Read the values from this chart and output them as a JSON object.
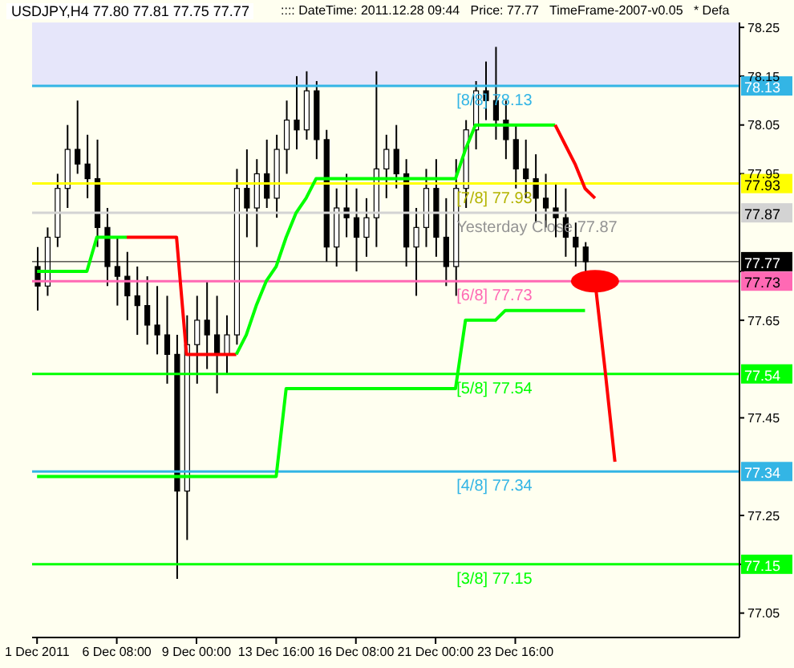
{
  "chart_data": {
    "type": "candlestick",
    "title": "USDJPY,H4  77.80 77.81 77.75 77.77",
    "subtitle": ":::: DateTime: 2011.12.28 09:44   Price: 77.77   TimeFrame-2007-v0.05   * Defa",
    "categories": [
      "1 Dec 2011",
      null,
      null,
      null,
      null,
      null,
      null,
      null,
      "6 Dec 08:00",
      null,
      null,
      null,
      null,
      null,
      null,
      null,
      "9 Dec 00:00",
      null,
      null,
      null,
      null,
      null,
      null,
      null,
      "13 Dec 16:00",
      null,
      null,
      null,
      null,
      null,
      null,
      null,
      "16 Dec 08:00",
      null,
      null,
      null,
      null,
      null,
      null,
      null,
      "21 Dec 00:00",
      null,
      null,
      null,
      null,
      null,
      null,
      null,
      "23 Dec 16:00",
      null,
      null,
      null,
      null,
      null,
      null,
      null,
      null,
      null,
      null,
      null,
      null,
      null,
      null,
      null,
      null,
      null,
      null,
      null,
      null,
      null,
      null
    ],
    "ohlc": [
      [
        77.76,
        77.8,
        77.67,
        77.72
      ],
      [
        77.72,
        77.84,
        77.7,
        77.82
      ],
      [
        77.82,
        77.95,
        77.8,
        77.92
      ],
      [
        77.92,
        78.05,
        77.88,
        78.0
      ],
      [
        78.0,
        78.1,
        77.95,
        77.97
      ],
      [
        77.97,
        78.03,
        77.9,
        77.94
      ],
      [
        77.94,
        78.02,
        77.8,
        77.84
      ],
      [
        77.84,
        77.88,
        77.72,
        77.76
      ],
      [
        77.76,
        77.82,
        77.68,
        77.74
      ],
      [
        77.74,
        77.79,
        77.65,
        77.7
      ],
      [
        77.7,
        77.76,
        77.62,
        77.68
      ],
      [
        77.68,
        77.74,
        77.6,
        77.64
      ],
      [
        77.64,
        77.72,
        77.58,
        77.62
      ],
      [
        77.62,
        77.7,
        77.52,
        77.58
      ],
      [
        77.58,
        77.62,
        77.12,
        77.3
      ],
      [
        77.3,
        77.66,
        77.2,
        77.6
      ],
      [
        77.6,
        77.7,
        77.52,
        77.65
      ],
      [
        77.65,
        77.73,
        77.55,
        77.62
      ],
      [
        77.62,
        77.7,
        77.5,
        77.58
      ],
      [
        77.58,
        77.66,
        77.54,
        77.62
      ],
      [
        77.62,
        77.96,
        77.6,
        77.92
      ],
      [
        77.92,
        78.0,
        77.82,
        77.88
      ],
      [
        77.88,
        77.98,
        77.8,
        77.95
      ],
      [
        77.95,
        78.02,
        77.88,
        77.9
      ],
      [
        77.9,
        78.03,
        77.86,
        78.0
      ],
      [
        78.0,
        78.1,
        77.95,
        78.06
      ],
      [
        78.06,
        78.15,
        78.0,
        78.04
      ],
      [
        78.04,
        78.16,
        78.02,
        78.12
      ],
      [
        78.12,
        78.14,
        77.98,
        78.02
      ],
      [
        78.02,
        78.04,
        77.77,
        77.8
      ],
      [
        77.8,
        77.92,
        77.76,
        77.88
      ],
      [
        77.88,
        77.95,
        77.82,
        77.86
      ],
      [
        77.86,
        77.92,
        77.75,
        77.82
      ],
      [
        77.82,
        77.9,
        77.78,
        77.86
      ],
      [
        77.86,
        78.16,
        77.8,
        77.96
      ],
      [
        77.96,
        78.03,
        77.9,
        78.0
      ],
      [
        78.0,
        78.05,
        77.92,
        77.95
      ],
      [
        77.95,
        77.98,
        77.76,
        77.8
      ],
      [
        77.8,
        77.88,
        77.7,
        77.84
      ],
      [
        77.84,
        77.96,
        77.8,
        77.92
      ],
      [
        77.92,
        77.98,
        77.78,
        77.82
      ],
      [
        77.82,
        77.9,
        77.72,
        77.76
      ],
      [
        77.76,
        77.98,
        77.7,
        77.92
      ],
      [
        77.92,
        78.06,
        77.88,
        78.04
      ],
      [
        78.04,
        78.14,
        78.0,
        78.12
      ],
      [
        78.12,
        78.18,
        78.06,
        78.1
      ],
      [
        78.1,
        78.21,
        78.02,
        78.06
      ],
      [
        78.06,
        78.1,
        77.98,
        78.02
      ],
      [
        78.02,
        78.05,
        77.92,
        77.96
      ],
      [
        77.96,
        78.02,
        77.9,
        77.94
      ],
      [
        77.94,
        77.99,
        77.85,
        77.9
      ],
      [
        77.9,
        77.95,
        77.84,
        77.88
      ],
      [
        77.88,
        77.93,
        77.82,
        77.86
      ],
      [
        77.86,
        77.92,
        77.78,
        77.82
      ],
      [
        77.82,
        77.85,
        77.76,
        77.8
      ],
      [
        77.8,
        77.81,
        77.75,
        77.77
      ],
      null,
      null,
      null,
      null,
      null,
      null,
      null,
      null,
      null,
      null,
      null,
      null,
      null,
      null,
      null
    ],
    "series": [
      {
        "type": "line",
        "color": "#00ff00",
        "values": [
          77.75,
          77.75,
          77.75,
          77.75,
          77.75,
          77.75,
          77.82,
          77.82,
          77.82,
          77.82,
          null,
          null,
          null,
          null,
          null,
          null,
          null,
          null,
          null,
          null,
          null,
          null,
          null,
          null,
          null,
          null,
          null,
          null,
          null,
          null,
          null,
          null,
          null,
          null,
          null,
          null,
          null,
          null,
          null,
          null,
          null,
          null,
          null,
          null,
          null,
          null,
          null,
          null,
          null,
          null,
          null,
          null,
          null,
          null,
          null,
          null,
          null,
          null,
          null,
          null,
          null,
          null,
          null,
          null,
          null,
          null,
          null,
          null,
          null,
          null,
          null
        ]
      },
      {
        "type": "line",
        "color": "#ff0000",
        "values": [
          null,
          null,
          null,
          null,
          null,
          null,
          null,
          null,
          null,
          77.82,
          77.82,
          77.82,
          77.82,
          77.82,
          77.82,
          77.58,
          77.58,
          77.58,
          77.58,
          77.58,
          77.58,
          null,
          null,
          null,
          null,
          null,
          null,
          null,
          null,
          null,
          null,
          null,
          null,
          null,
          null,
          null,
          null,
          null,
          null,
          null,
          null,
          null,
          null,
          null,
          null,
          null,
          null,
          null,
          null,
          null,
          null,
          null,
          null,
          null,
          null,
          null,
          null,
          null,
          null,
          null,
          null,
          null,
          null,
          null,
          null,
          null,
          null,
          null,
          null,
          null,
          null
        ]
      },
      {
        "type": "line",
        "color": "#00ff00",
        "values": [
          null,
          null,
          null,
          null,
          null,
          null,
          null,
          null,
          null,
          null,
          null,
          null,
          null,
          null,
          null,
          null,
          null,
          null,
          null,
          null,
          77.58,
          77.62,
          77.68,
          77.73,
          77.76,
          77.82,
          77.87,
          77.9,
          77.94,
          77.94,
          77.94,
          77.94,
          77.94,
          77.94,
          77.94,
          77.94,
          77.94,
          77.94,
          77.94,
          77.94,
          77.94,
          77.94,
          77.94,
          78.0,
          78.05,
          78.05,
          78.05,
          78.05,
          78.05,
          78.05,
          78.05,
          78.05,
          78.05,
          null,
          null,
          null,
          null,
          null,
          null,
          null,
          null,
          null,
          null,
          null,
          null,
          null,
          null,
          null,
          null,
          null,
          null
        ]
      },
      {
        "type": "line",
        "color": "#ff0000",
        "values": [
          null,
          null,
          null,
          null,
          null,
          null,
          null,
          null,
          null,
          null,
          null,
          null,
          null,
          null,
          null,
          null,
          null,
          null,
          null,
          null,
          null,
          null,
          null,
          null,
          null,
          null,
          null,
          null,
          null,
          null,
          null,
          null,
          null,
          null,
          null,
          null,
          null,
          null,
          null,
          null,
          null,
          null,
          null,
          null,
          null,
          null,
          null,
          null,
          null,
          null,
          null,
          null,
          78.05,
          78.01,
          77.97,
          77.92,
          77.9,
          null,
          null,
          null,
          null,
          null,
          null,
          null,
          null,
          null,
          null,
          null,
          null,
          null,
          null
        ]
      },
      {
        "type": "line",
        "color": "#00ff00",
        "values": [
          77.33,
          77.33,
          77.33,
          77.33,
          77.33,
          77.33,
          77.33,
          77.33,
          77.33,
          77.33,
          77.33,
          77.33,
          77.33,
          77.33,
          77.33,
          77.33,
          77.33,
          77.33,
          77.33,
          77.33,
          77.33,
          77.33,
          77.33,
          77.33,
          77.33,
          77.51,
          77.51,
          77.51,
          77.51,
          77.51,
          77.51,
          77.51,
          77.51,
          77.51,
          77.51,
          77.51,
          77.51,
          77.51,
          77.51,
          77.51,
          77.51,
          77.51,
          77.51,
          77.65,
          77.65,
          77.65,
          77.65,
          77.67,
          77.67,
          77.67,
          77.67,
          77.67,
          77.67,
          77.67,
          77.67,
          77.67,
          null,
          null,
          null,
          null,
          null,
          null,
          null,
          null,
          null,
          null,
          null,
          null,
          null,
          null,
          null
        ]
      },
      {
        "type": "line",
        "color": "#ff0000",
        "values": [
          null,
          null,
          null,
          null,
          null,
          null,
          null,
          null,
          null,
          null,
          null,
          null,
          null,
          null,
          null,
          null,
          null,
          null,
          null,
          null,
          null,
          null,
          null,
          null,
          null,
          null,
          null,
          null,
          null,
          null,
          null,
          null,
          null,
          null,
          null,
          null,
          null,
          null,
          null,
          null,
          null,
          null,
          null,
          null,
          null,
          null,
          null,
          null,
          null,
          null,
          null,
          null,
          null,
          null,
          null,
          null,
          77.73,
          77.55,
          77.36,
          null,
          null,
          null,
          null,
          null,
          null,
          null,
          null,
          null,
          null,
          null,
          null
        ]
      },
      {
        "type": "scatter",
        "color": "#ff0000",
        "marker": "circle",
        "values": [
          null,
          null,
          null,
          null,
          null,
          null,
          null,
          null,
          null,
          null,
          null,
          null,
          null,
          null,
          null,
          null,
          null,
          null,
          null,
          null,
          null,
          null,
          null,
          null,
          null,
          null,
          null,
          null,
          null,
          null,
          null,
          null,
          null,
          null,
          null,
          null,
          null,
          null,
          null,
          null,
          null,
          null,
          null,
          null,
          null,
          null,
          null,
          null,
          null,
          null,
          null,
          null,
          null,
          null,
          null,
          null,
          77.73,
          null,
          null,
          null,
          null,
          null,
          null,
          null,
          null,
          null,
          null,
          null,
          null,
          null,
          null
        ]
      }
    ],
    "ylim": [
      77.0,
      78.26
    ],
    "yticks": [
      77.05,
      {
        "value": 77.15,
        "label": null
      },
      77.25,
      77.45,
      77.65,
      {
        "value": 77.75,
        "label": null
      },
      77.95,
      78.05,
      78.15,
      78.25
    ],
    "y2lim": [
      77.0,
      78.26
    ],
    "y2ticks": [
      78.13,
      77.93,
      77.87,
      77.77,
      77.73,
      77.54,
      77.34,
      77.15
    ],
    "bands": [
      {
        "axis": "y",
        "from": 78.13,
        "to": 78.26,
        "color": "#e6e6fa"
      }
    ],
    "ref_lines": [
      {
        "axis": "y",
        "value": 78.13,
        "label": "[8/8] 78.13",
        "color": "#33b5e5"
      },
      {
        "axis": "y",
        "value": 77.93,
        "label": "[7/8] 77.93",
        "color": "#ffff00"
      },
      {
        "axis": "y",
        "value": 77.87,
        "label": "Yesterday Close 77.87",
        "color": "#d3d3d3"
      },
      {
        "axis": "y",
        "value": 77.77,
        "color": "#000000"
      },
      {
        "axis": "y",
        "value": 77.73,
        "label": "[6/8] 77.73",
        "color": "#ff69b4"
      },
      {
        "axis": "y",
        "value": 77.54,
        "label": "[5/8] 77.54",
        "color": "#00ff00"
      },
      {
        "axis": "y",
        "value": 77.34,
        "label": "[4/8] 77.34",
        "color": "#33b5e5"
      },
      {
        "axis": "y",
        "value": 77.15,
        "label": "[3/8] 77.15",
        "color": "#00ff00"
      }
    ]
  }
}
